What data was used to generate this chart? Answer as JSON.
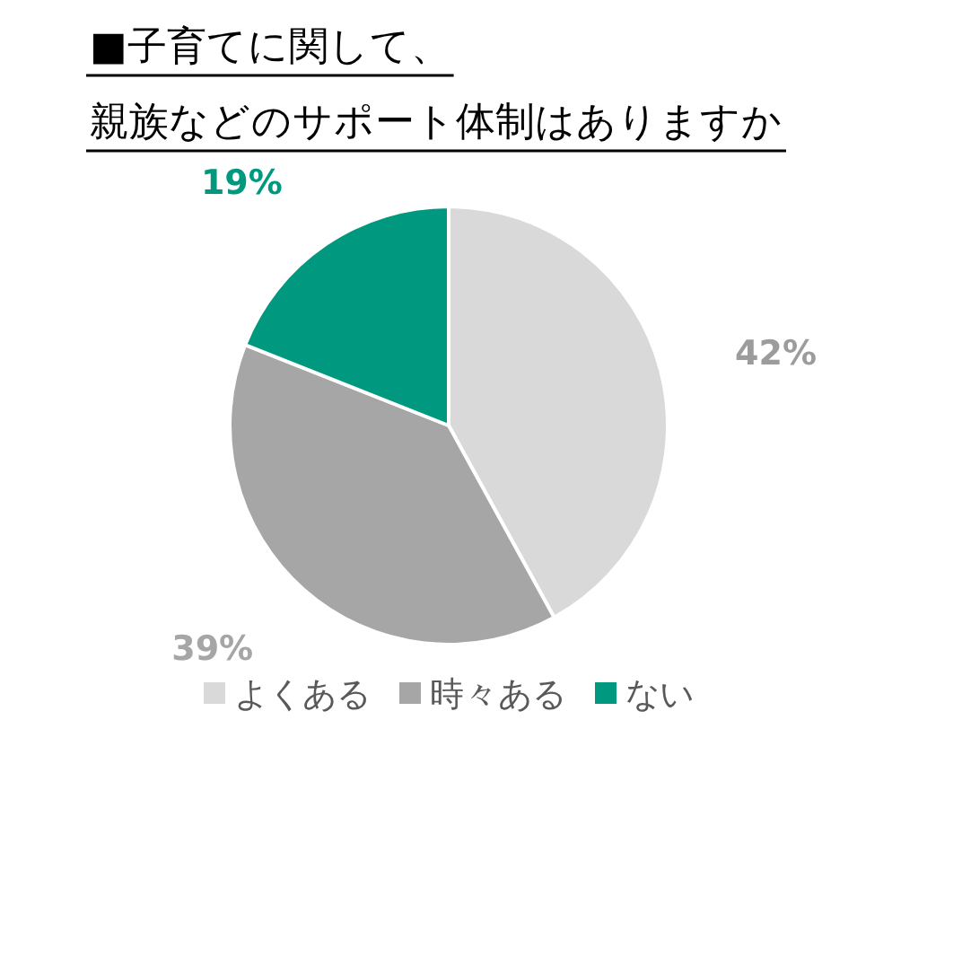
{
  "chart_data": {
    "type": "pie",
    "title": "■子育てに関して、親族などのサポート体制はありますか",
    "categories": [
      "よくある",
      "時々ある",
      "ない"
    ],
    "values": [
      42,
      39,
      19
    ],
    "colors": [
      "#d9d9d9",
      "#a6a6a6",
      "#00997f"
    ],
    "value_labels": [
      "42%",
      "39%",
      "19%"
    ],
    "legend": "bottom"
  }
}
